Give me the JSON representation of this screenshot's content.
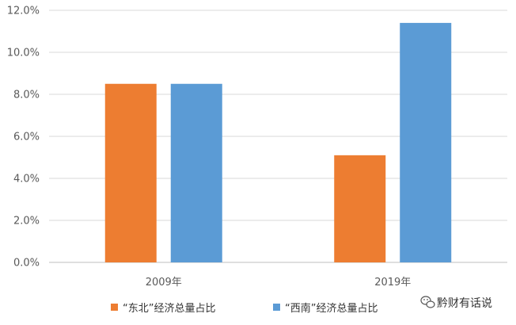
{
  "chart_data": {
    "type": "bar",
    "categories": [
      "2009年",
      "2019年"
    ],
    "series": [
      {
        "name": "“东北”经济总量占比",
        "values": [
          8.5,
          5.1
        ],
        "color": "#ED7D31"
      },
      {
        "name": "“西南”经济总量占比",
        "values": [
          8.5,
          11.4
        ],
        "color": "#5B9BD5"
      }
    ],
    "ylim": [
      0,
      12
    ],
    "yticks": [
      "0.0%",
      "2.0%",
      "4.0%",
      "6.0%",
      "8.0%",
      "10.0%",
      "12.0%"
    ],
    "grid": true,
    "legend_position": "bottom"
  },
  "watermark": {
    "text": "黔财有话说",
    "icon": "wechat-icon"
  }
}
